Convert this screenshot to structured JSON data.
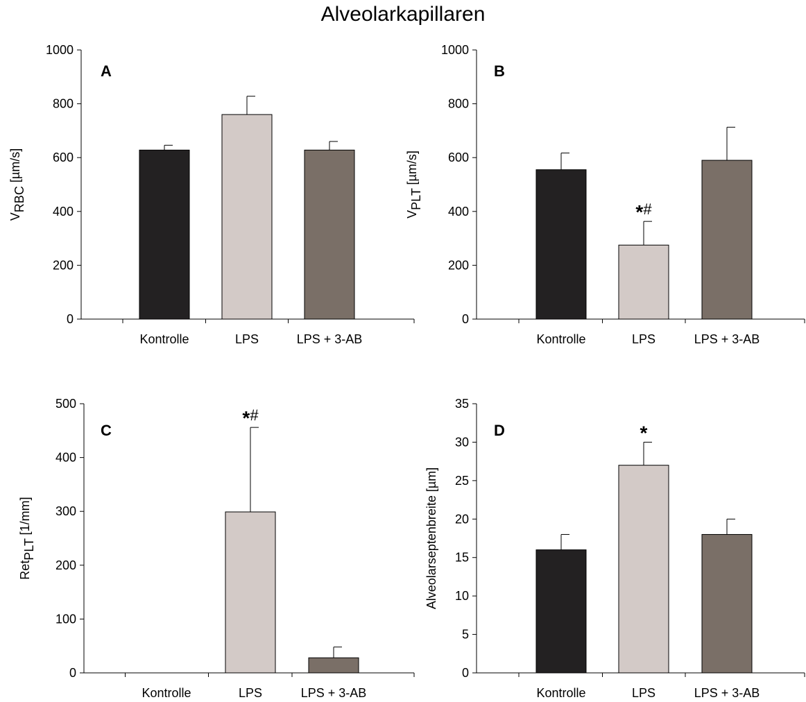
{
  "figure": {
    "title": "Alveolarkapillaren"
  },
  "chart_data": [
    {
      "type": "bar",
      "panel_label": "A",
      "categories": [
        "Kontrolle",
        "LPS",
        "LPS + 3-AB"
      ],
      "values": [
        628,
        760,
        628
      ],
      "errors": [
        18,
        68,
        32
      ],
      "annotations": [
        "",
        "",
        ""
      ],
      "ylabel_main": "V",
      "ylabel_sub": "RBC",
      "ylabel_rest": " [µm/s]",
      "ylim": [
        0,
        1000
      ],
      "yticks": [
        0,
        200,
        400,
        600,
        800,
        1000
      ],
      "colors": [
        "#232122",
        "#d3cac7",
        "#7a6f67"
      ]
    },
    {
      "type": "bar",
      "panel_label": "B",
      "categories": [
        "Kontrolle",
        "LPS",
        "LPS + 3-AB"
      ],
      "values": [
        555,
        275,
        590
      ],
      "errors": [
        62,
        88,
        123
      ],
      "annotations": [
        "",
        "*#",
        ""
      ],
      "ylabel_main": "V",
      "ylabel_sub": "PLT",
      "ylabel_rest": " [µm/s]",
      "ylim": [
        0,
        1000
      ],
      "yticks": [
        0,
        200,
        400,
        600,
        800,
        1000
      ],
      "colors": [
        "#232122",
        "#d3cac7",
        "#7a6f67"
      ]
    },
    {
      "type": "bar",
      "panel_label": "C",
      "categories": [
        "Kontrolle",
        "LPS",
        "LPS + 3-AB"
      ],
      "values": [
        0,
        299,
        28
      ],
      "errors": [
        0,
        157,
        20
      ],
      "annotations": [
        "",
        "*#",
        ""
      ],
      "ylabel_main": "Ret",
      "ylabel_sub": "PLT",
      "ylabel_rest": " [1/mm]",
      "ylim": [
        0,
        500
      ],
      "yticks": [
        0,
        100,
        200,
        300,
        400,
        500
      ],
      "colors": [
        "#232122",
        "#d3cac7",
        "#7a6f67"
      ]
    },
    {
      "type": "bar",
      "panel_label": "D",
      "categories": [
        "Kontrolle",
        "LPS",
        "LPS + 3-AB"
      ],
      "values": [
        16,
        27,
        18
      ],
      "errors": [
        2,
        3,
        2
      ],
      "annotations": [
        "",
        "*",
        ""
      ],
      "ylabel_main": "Alveolarseptenbreite [µm]",
      "ylabel_sub": "",
      "ylabel_rest": "",
      "ylim": [
        0,
        35
      ],
      "yticks": [
        0,
        5,
        10,
        15,
        20,
        25,
        30,
        35
      ],
      "colors": [
        "#232122",
        "#d3cac7",
        "#7a6f67"
      ]
    }
  ]
}
